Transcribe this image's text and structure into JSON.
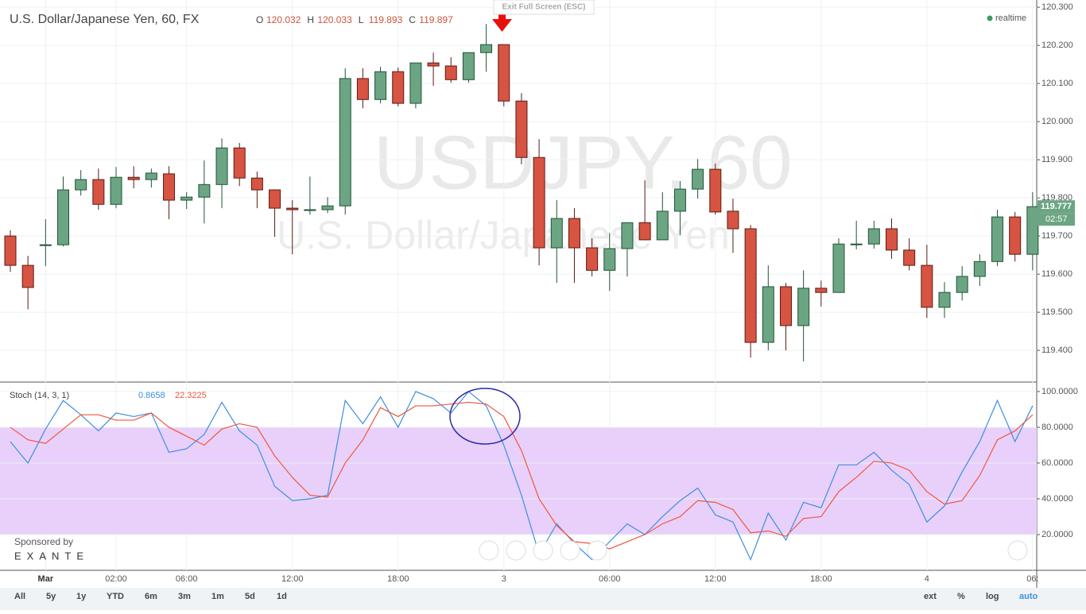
{
  "chart_data": [
    {
      "type": "candlestick",
      "title": "U.S. Dollar/Japanese Yen, 60, FX",
      "ohlc_readout": [
        {
          "label": "O",
          "value": 120.032
        },
        {
          "label": "H",
          "value": 120.033
        },
        {
          "label": "L",
          "value": 119.893
        },
        {
          "label": "C",
          "value": 119.897
        }
      ],
      "status": "realtime",
      "watermark": [
        "USDJPY, 60",
        "U.S. Dollar/Japanese Yen"
      ],
      "countdown": "02:57",
      "tooltip": "Exit Full Screen (ESC)",
      "categories": [
        null,
        null,
        "Mar",
        null,
        null,
        null,
        "02:00",
        null,
        null,
        null,
        "06:00",
        null,
        null,
        null,
        null,
        null,
        "12:00",
        null,
        null,
        null,
        null,
        null,
        "18:00",
        null,
        null,
        null,
        null,
        null,
        "3",
        null,
        null,
        null,
        null,
        null,
        "06:00",
        null,
        null,
        null,
        null,
        null,
        "12:00",
        null,
        null,
        null,
        null,
        null,
        "18:00",
        null,
        null,
        null,
        null,
        null,
        "4",
        null,
        null,
        null,
        null,
        null,
        "06:"
      ],
      "open": [
        119.7,
        119.623,
        119.675,
        119.677,
        119.821,
        119.848,
        119.783,
        119.854,
        119.848,
        119.863,
        119.794,
        119.802,
        119.835,
        119.931,
        119.852,
        119.821,
        119.773,
        119.767,
        119.769,
        119.779,
        120.113,
        120.058,
        120.131,
        120.048,
        120.154,
        120.146,
        120.11,
        120.181,
        120.202,
        120.054,
        119.906,
        119.669,
        119.746,
        119.669,
        119.61,
        119.667,
        119.735,
        119.69,
        119.765,
        119.823,
        119.875,
        119.765,
        119.719,
        119.421,
        119.567,
        119.465,
        119.563,
        119.552,
        119.679,
        119.679,
        119.719,
        119.663,
        119.623,
        119.513,
        119.552,
        119.594,
        119.633,
        119.75,
        119.652
      ],
      "high": [
        119.715,
        119.648,
        119.744,
        119.856,
        119.873,
        119.877,
        119.881,
        119.883,
        119.877,
        119.883,
        119.815,
        119.898,
        119.956,
        119.944,
        119.869,
        119.821,
        119.794,
        119.856,
        119.802,
        120.14,
        120.14,
        120.144,
        120.142,
        120.154,
        120.181,
        120.169,
        120.181,
        120.256,
        120.202,
        120.075,
        119.954,
        119.794,
        119.773,
        119.694,
        119.708,
        119.735,
        119.846,
        119.815,
        119.844,
        119.902,
        119.89,
        119.798,
        119.729,
        119.623,
        119.577,
        119.61,
        119.583,
        119.694,
        119.74,
        119.74,
        119.746,
        119.694,
        119.677,
        119.579,
        119.621,
        119.652,
        119.769,
        119.763,
        119.815
      ],
      "low": [
        119.606,
        119.508,
        119.621,
        119.673,
        119.806,
        119.769,
        119.773,
        119.825,
        119.827,
        119.744,
        119.771,
        119.733,
        119.773,
        119.831,
        119.773,
        119.698,
        119.652,
        119.756,
        119.76,
        119.756,
        120.035,
        120.048,
        120.04,
        120.035,
        120.094,
        120.102,
        120.102,
        120.131,
        120.04,
        119.888,
        119.623,
        119.577,
        119.577,
        119.594,
        119.556,
        119.594,
        119.69,
        119.69,
        119.702,
        119.798,
        119.756,
        119.656,
        119.381,
        119.4,
        119.4,
        119.371,
        119.515,
        119.552,
        119.665,
        119.667,
        119.64,
        119.61,
        119.485,
        119.485,
        119.531,
        119.569,
        119.621,
        119.633,
        119.61
      ],
      "close": [
        119.623,
        119.565,
        119.677,
        119.821,
        119.848,
        119.783,
        119.854,
        119.848,
        119.865,
        119.794,
        119.802,
        119.835,
        119.931,
        119.852,
        119.821,
        119.773,
        119.769,
        119.769,
        119.779,
        120.113,
        120.058,
        120.131,
        120.048,
        120.154,
        120.146,
        120.11,
        120.181,
        120.202,
        120.054,
        119.906,
        119.669,
        119.746,
        119.669,
        119.61,
        119.667,
        119.735,
        119.69,
        119.765,
        119.823,
        119.875,
        119.763,
        119.719,
        119.421,
        119.567,
        119.465,
        119.563,
        119.552,
        119.679,
        119.679,
        119.719,
        119.663,
        119.623,
        119.513,
        119.552,
        119.594,
        119.633,
        119.75,
        119.652,
        119.777
      ],
      "up_color": "#6ba583",
      "down_color": "#d75442",
      "ylim": [
        119.319,
        120.319
      ],
      "yticks": [
        {
          "value": 120.3,
          "label": "120.300"
        },
        {
          "value": 120.2,
          "label": "120.200"
        },
        {
          "value": 120.1,
          "label": "120.100"
        },
        {
          "value": 120.0,
          "label": "120.000"
        },
        {
          "value": 119.9,
          "label": "119.900"
        },
        {
          "value": 119.8,
          "label": "119.800"
        },
        {
          "value": 119.7,
          "label": "119.700"
        },
        {
          "value": 119.6,
          "label": "119.600"
        },
        {
          "value": 119.5,
          "label": "119.500"
        },
        {
          "value": 119.4,
          "label": "119.400"
        }
      ],
      "grid": true
    },
    {
      "type": "line",
      "title": "Stoch (14, 3, 1)",
      "readout": [
        0.8658,
        22.3225
      ],
      "series": [
        {
          "name": "%K",
          "color": "#3d8ee0",
          "values": [
            72,
            60,
            79,
            95,
            87,
            78,
            88,
            86,
            88,
            66,
            68,
            76,
            94,
            78,
            70,
            47,
            39,
            40,
            42,
            95,
            82,
            97,
            80,
            100,
            96,
            88,
            100,
            92,
            70,
            42,
            9,
            26,
            15,
            6,
            16,
            26,
            20,
            30,
            39,
            46,
            31,
            27,
            6,
            32,
            17,
            38,
            35,
            59,
            59,
            66,
            56,
            48,
            27,
            36,
            55,
            72,
            95,
            72,
            92
          ]
        },
        {
          "name": "%D",
          "color": "#f0573a",
          "values": [
            80,
            73,
            71,
            79,
            87,
            87,
            84,
            84,
            88,
            80,
            75,
            70,
            79,
            82,
            80,
            64,
            52,
            42,
            41,
            60,
            73,
            91,
            86,
            92,
            92,
            93,
            94,
            93,
            86,
            67,
            40,
            25,
            16,
            15,
            12,
            16,
            20,
            26,
            30,
            39,
            38,
            34,
            21,
            22,
            19,
            29,
            30,
            44,
            52,
            61,
            60,
            56,
            44,
            37,
            39,
            53,
            73,
            78,
            87
          ]
        }
      ],
      "band": [
        20,
        80
      ],
      "band_color": "#e8d0fb",
      "ylim": [
        0,
        105.3
      ],
      "yticks": [
        {
          "value": 100,
          "label": "100.0000"
        },
        {
          "value": 80,
          "label": "80.0000"
        },
        {
          "value": 60,
          "label": "60.0000"
        },
        {
          "value": 40,
          "label": "40.0000"
        },
        {
          "value": 20,
          "label": "20.0000"
        }
      ],
      "sponsor": [
        "Sponsored by",
        "EXANTE"
      ]
    }
  ],
  "toolbar": {
    "ranges": [
      "All",
      "5y",
      "1y",
      "YTD",
      "6m",
      "3m",
      "1m",
      "5d",
      "1d"
    ],
    "options": [
      "ext",
      "%",
      "log",
      "auto"
    ]
  }
}
